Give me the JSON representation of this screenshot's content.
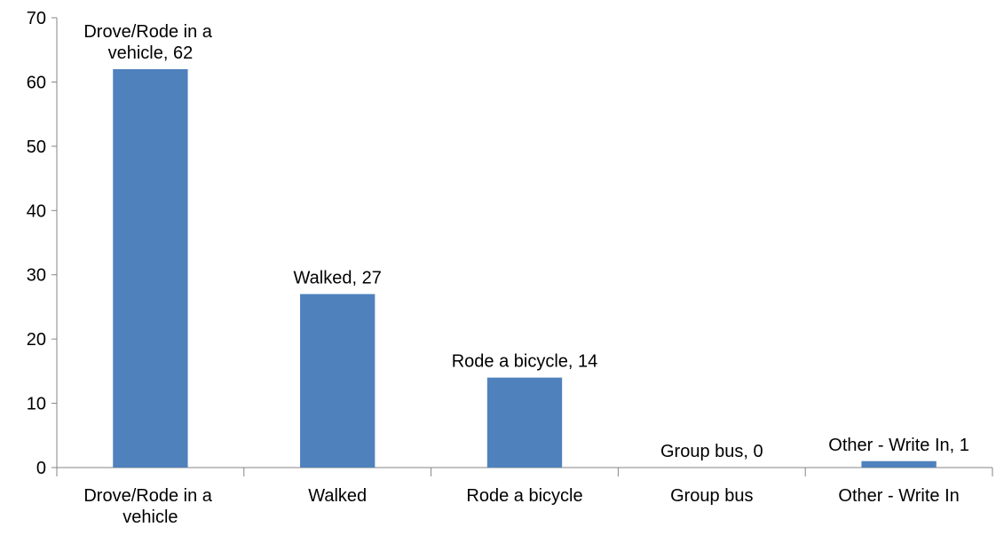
{
  "chart_data": {
    "type": "bar",
    "categories": [
      "Drove/Rode in a vehicle",
      "Walked",
      "Rode a bicycle",
      "Group bus",
      "Other - Write In"
    ],
    "values": [
      62,
      27,
      14,
      0,
      1
    ],
    "value_labels": [
      "Drove/Rode in a vehicle, 62",
      "Walked, 27",
      "Rode a bicycle, 14",
      "Group bus, 0",
      "Other - Write In, 1"
    ],
    "color": "#4f81bd",
    "ylim": [
      0,
      70
    ],
    "yticks": [
      0,
      10,
      20,
      30,
      40,
      50,
      60,
      70
    ],
    "grid": false
  }
}
